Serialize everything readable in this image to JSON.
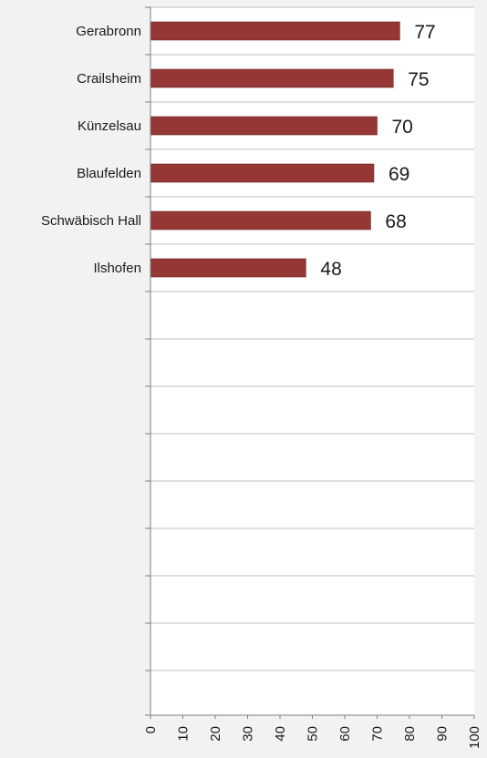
{
  "chart_data": {
    "type": "bar",
    "orientation": "horizontal",
    "categories": [
      "Gerabronn",
      "Crailsheim",
      "Künzelsau",
      "Blaufelden",
      "Schwäbisch Hall",
      "Ilshofen"
    ],
    "values": [
      77,
      75,
      70,
      69,
      68,
      48
    ],
    "value_labels": [
      "77",
      "75",
      "70",
      "69",
      "68",
      "48"
    ],
    "title": "",
    "xlabel": "",
    "ylabel": "",
    "xlim": [
      0,
      100
    ],
    "x_ticks": [
      "0",
      "10",
      "20",
      "30",
      "40",
      "50",
      "60",
      "70",
      "80",
      "90",
      "100"
    ],
    "category_slots": 15,
    "grid": "horizontal",
    "legend": "none",
    "colors": {
      "bar": "#953735",
      "bar_edge": "#6e2624",
      "background": "#f2f2f2",
      "plot_background": "#ffffff",
      "grid": "#bfbfbf",
      "axis": "#7f7f7f"
    }
  }
}
